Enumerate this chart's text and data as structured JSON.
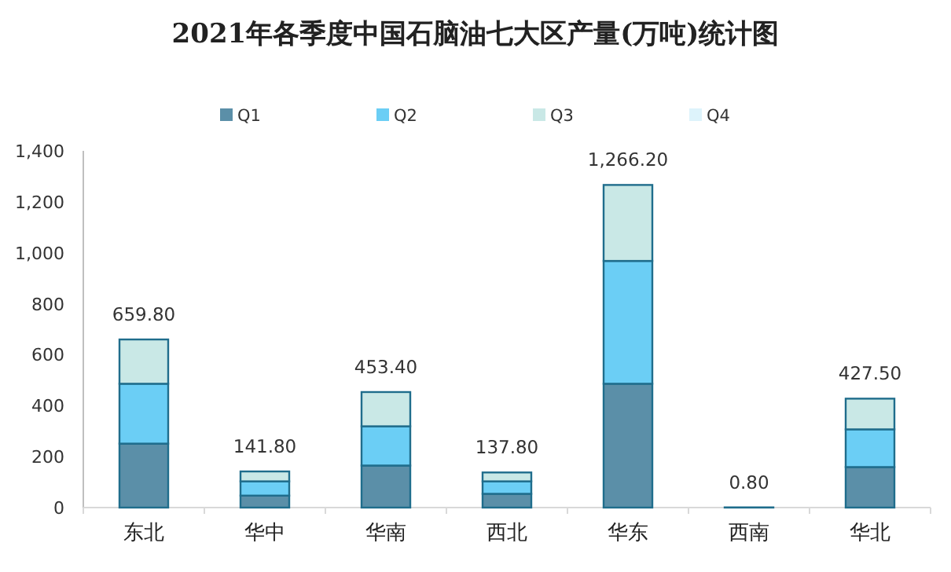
{
  "chart_data": {
    "type": "bar",
    "stacked": true,
    "title": "2021年各季度中国石脑油七大区产量(万吨)统计图",
    "categories": [
      "东北",
      "华中",
      "华南",
      "西北",
      "华东",
      "西南",
      "华北"
    ],
    "series": [
      {
        "name": "Q1",
        "color": "#5b8fa8",
        "values": [
          251,
          47,
          165,
          54,
          486,
          0.8,
          159
        ]
      },
      {
        "name": "Q2",
        "color": "#6bcef5",
        "values": [
          235,
          56,
          154,
          49,
          482,
          0,
          148
        ]
      },
      {
        "name": "Q3",
        "color": "#c9e8e6",
        "values": [
          173.8,
          38.8,
          134.4,
          34.8,
          298.2,
          0,
          120.5
        ]
      },
      {
        "name": "Q4",
        "color": "#ddf3fb",
        "values": [
          0,
          0,
          0,
          0,
          0,
          0,
          0
        ]
      }
    ],
    "totals": [
      "659.80",
      "141.80",
      "453.40",
      "137.80",
      "1,266.20",
      "0.80",
      "427.50"
    ],
    "ylim": [
      0,
      1400
    ],
    "yticks": [
      0,
      200,
      400,
      600,
      800,
      {
        "value": 1000,
        "label": "1,000"
      },
      {
        "value": 1200,
        "label": "1,200"
      },
      {
        "value": 1400,
        "label": "1,400"
      }
    ],
    "legend": "top",
    "grid": false
  }
}
